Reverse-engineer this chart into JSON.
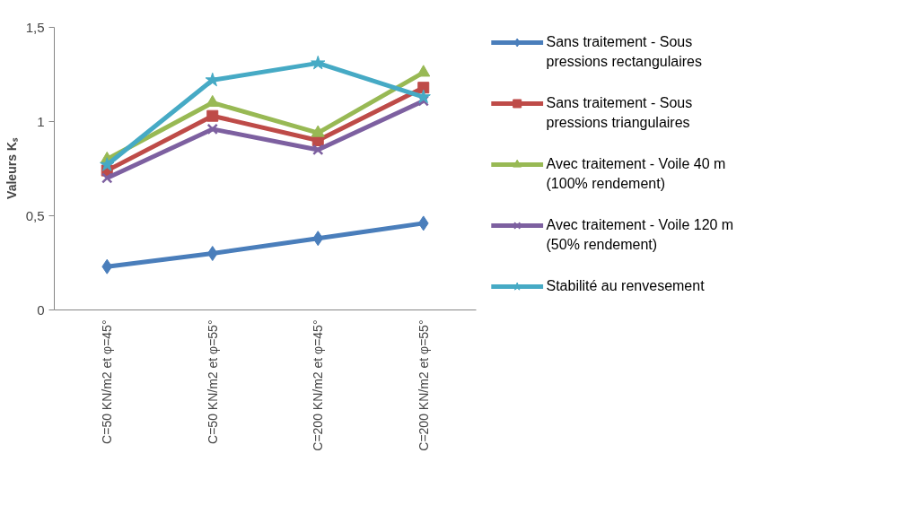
{
  "chart_data": {
    "type": "line",
    "ylabel": "Valeurs Kₛ",
    "categories": [
      "C=50 KN/m2 et φ=45°",
      "C=50 KN/m2 et φ=55°",
      "C=200 KN/m2 et φ=45°",
      "C=200 KN/m2 et φ=55°"
    ],
    "series": [
      {
        "name": "Sans traitement - Sous pressions rectangulaires",
        "color": "#4a7ebb",
        "marker": "diamond",
        "values": [
          0.23,
          0.3,
          0.38,
          0.46
        ]
      },
      {
        "name": "Sans traitement - Sous pressions triangulaires",
        "color": "#be4b48",
        "marker": "square",
        "values": [
          0.74,
          1.03,
          0.9,
          1.18
        ]
      },
      {
        "name": "Avec traitement - Voile 40 m (100% rendement)",
        "color": "#98b954",
        "marker": "triangle",
        "values": [
          0.8,
          1.1,
          0.94,
          1.26
        ]
      },
      {
        "name": "Avec traitement - Voile 120 m (50% rendement)",
        "color": "#7d60a0",
        "marker": "cross",
        "values": [
          0.7,
          0.96,
          0.85,
          1.11
        ]
      },
      {
        "name": "Stabilité au renvesement",
        "color": "#46aac5",
        "marker": "star",
        "values": [
          0.77,
          1.22,
          1.31,
          1.13
        ]
      }
    ],
    "ylim": [
      0,
      1.5
    ],
    "yticks": [
      0,
      {
        "value": 0.5,
        "label": "0,5"
      },
      1,
      {
        "value": 1.5,
        "label": "1,5"
      }
    ],
    "grid": false,
    "legend": "right",
    "line_style": "solid"
  }
}
